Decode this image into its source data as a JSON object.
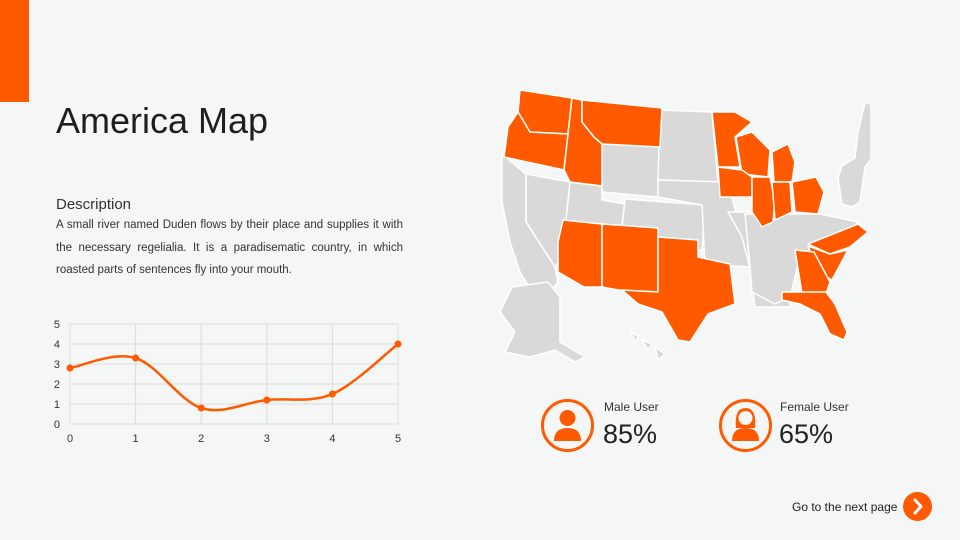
{
  "slide": {
    "title": "America Map",
    "description_heading": "Description",
    "description_body": "A small river named Duden flows by their place and supplies it with the necessary regelialia. It is a paradisematic country, in which roasted parts of sentences fly into your mouth.",
    "accent_color": "#ff5a00"
  },
  "chart_data": {
    "type": "line",
    "x": [
      0,
      1,
      2,
      3,
      4,
      5
    ],
    "y": [
      2.8,
      3.3,
      0.8,
      1.2,
      1.5,
      4.0
    ],
    "xticks": [
      "0",
      "1",
      "2",
      "3",
      "4",
      "5"
    ],
    "yticks": [
      "0",
      "1",
      "2",
      "3",
      "4",
      "5"
    ],
    "xlim": [
      0,
      5
    ],
    "ylim": [
      0,
      5
    ],
    "grid": true,
    "smooth": true,
    "color": "#ff5a00"
  },
  "map": {
    "highlight_color": "#ff5a00",
    "base_color": "#d9d9d9",
    "highlighted_states": [
      "Washington",
      "Oregon",
      "Idaho",
      "Montana",
      "Minnesota",
      "Wisconsin",
      "Iowa",
      "Illinois",
      "Michigan",
      "Indiana",
      "Ohio",
      "Arizona",
      "New Mexico",
      "Texas",
      "North Carolina",
      "South Carolina",
      "Georgia",
      "Florida"
    ]
  },
  "users": [
    {
      "label": "Male User",
      "value": "85%",
      "icon": "male-user-icon"
    },
    {
      "label": "Female User",
      "value": "65%",
      "icon": "female-user-icon"
    }
  ],
  "navigation": {
    "next_label": "Go to the next page",
    "next_icon": "chevron-right-icon"
  }
}
